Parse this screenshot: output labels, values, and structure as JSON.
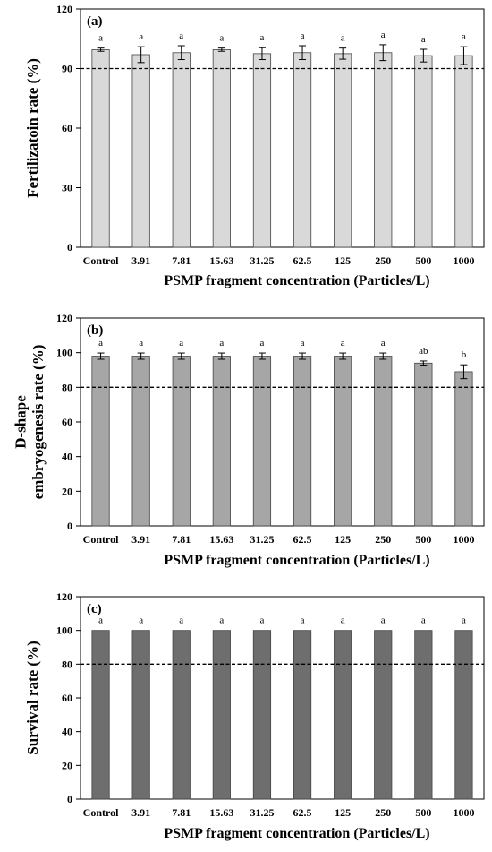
{
  "chart_data": [
    {
      "type": "bar",
      "panel_label": "(a)",
      "categories": [
        "Control",
        "3.91",
        "7.81",
        "15.63",
        "31.25",
        "62.5",
        "125",
        "250",
        "500",
        "1000"
      ],
      "values": [
        99.5,
        97,
        98,
        99.5,
        97.5,
        98,
        97.5,
        98,
        96.5,
        96.5
      ],
      "errors": [
        0.8,
        4,
        3.5,
        0.8,
        3,
        3.5,
        2.8,
        4,
        3.2,
        4.5
      ],
      "significance": [
        "a",
        "a",
        "a",
        "a",
        "a",
        "a",
        "a",
        "a",
        "a",
        "a"
      ],
      "reference_line": 90,
      "ylabel": "Fertilizatoin rate (%)",
      "xlabel": "PSMP fragment concentration (Particles/L)",
      "ylim": [
        0,
        120
      ],
      "yticks": [
        0,
        30,
        60,
        90,
        120
      ],
      "bar_color": "#d9d9d9",
      "grid": false
    },
    {
      "type": "bar",
      "panel_label": "(b)",
      "categories": [
        "Control",
        "3.91",
        "7.81",
        "15.63",
        "31.25",
        "62.5",
        "125",
        "250",
        "500",
        "1000"
      ],
      "values": [
        98,
        98,
        98,
        98,
        98,
        98,
        98,
        98,
        94,
        89
      ],
      "errors": [
        1.8,
        1.8,
        1.8,
        1.8,
        1.8,
        1.8,
        1.8,
        1.8,
        1.2,
        4
      ],
      "significance": [
        "a",
        "a",
        "a",
        "a",
        "a",
        "a",
        "a",
        "a",
        "ab",
        "b"
      ],
      "reference_line": 80,
      "ylabel_lines": [
        "D-shape",
        "embryogenesis rate (%)"
      ],
      "xlabel": "PSMP fragment concentration (Particles/L)",
      "ylim": [
        0,
        120
      ],
      "yticks": [
        0,
        20,
        40,
        60,
        80,
        100,
        120
      ],
      "bar_color": "#a6a6a6",
      "grid": false
    },
    {
      "type": "bar",
      "panel_label": "(c)",
      "categories": [
        "Control",
        "3.91",
        "7.81",
        "15.63",
        "31.25",
        "62.5",
        "125",
        "250",
        "500",
        "1000"
      ],
      "values": [
        100,
        100,
        100,
        100,
        100,
        100,
        100,
        100,
        100,
        100
      ],
      "errors": [
        0,
        0,
        0,
        0,
        0,
        0,
        0,
        0,
        0,
        0
      ],
      "significance": [
        "a",
        "a",
        "a",
        "a",
        "a",
        "a",
        "a",
        "a",
        "a",
        "a"
      ],
      "reference_line": 80,
      "ylabel": "Survival rate (%)",
      "xlabel": "PSMP fragment concentration (Particles/L)",
      "ylim": [
        0,
        120
      ],
      "yticks": [
        0,
        20,
        40,
        60,
        80,
        100,
        120
      ],
      "bar_color": "#6e6e6e",
      "grid": false
    }
  ]
}
